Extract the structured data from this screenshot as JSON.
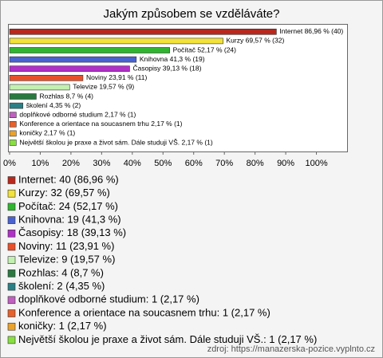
{
  "chart_data": {
    "type": "bar",
    "orientation": "horizontal",
    "title": "Jakým způsobem se vzděláváte?",
    "categories": [
      "Internet",
      "Kurzy",
      "Počítač",
      "Knihovna",
      "Časopisy",
      "Noviny",
      "Televize",
      "Rozhlas",
      "školení",
      "doplňkové odborné studium",
      "Konference a orientace na soucasnem trhu",
      "koničky",
      "Největší školou je praxe a život sám. Dále studuji VŠ."
    ],
    "values": [
      86.96,
      69.57,
      52.17,
      41.3,
      39.13,
      23.91,
      19.57,
      8.7,
      4.35,
      2.17,
      2.17,
      2.17,
      2.17
    ],
    "value_labels": [
      "Internet 86,96 % (40)",
      "Kurzy 69,57 % (32)",
      "Počítač 52,17 % (24)",
      "Knihovna 41,3 % (19)",
      "Časopisy 39,13 % (18)",
      "Noviny 23,91 % (11)",
      "Televize 19,57 % (9)",
      "Rozhlas 8,7 % (4)",
      "školení 4,35 % (2)",
      "doplňkové odborné studium 2,17 % (1)",
      "Konference a orientace na soucasnem trhu 2,17 % (1)",
      "koničky 2,17 % (1)",
      "Největší školou je praxe a život sám. Dále studuji VŠ. 2,17 % (1)"
    ],
    "legend_labels": [
      "Internet: 40 (86,96 %)",
      "Kurzy: 32 (69,57 %)",
      "Počítač: 24 (52,17 %)",
      "Knihovna: 19 (41,3 %)",
      "Časopisy: 18 (39,13 %)",
      "Noviny: 11 (23,91 %)",
      "Televize: 9 (19,57 %)",
      "Rozhlas: 4 (8,7 %)",
      "školení: 2 (4,35 %)",
      "doplňkové odborné studium: 1 (2,17 %)",
      "Konference a orientace na soucasnem trhu: 1 (2,17 %)",
      "koničky: 1 (2,17 %)",
      "Největší školou je praxe a život sám. Dále studuji VŠ.: 1 (2,17 %)"
    ],
    "colors": [
      "#b8281c",
      "#f2e23a",
      "#2fb52f",
      "#4a62d0",
      "#b030c8",
      "#e8502a",
      "#c2f0b0",
      "#2a7a40",
      "#2a7f86",
      "#c060c0",
      "#e8602a",
      "#eaa22a",
      "#88e040"
    ],
    "xlim": [
      0,
      110
    ],
    "xticks": [
      {
        "value": 0,
        "label": "0%"
      },
      {
        "value": 10,
        "label": "10%"
      },
      {
        "value": 20,
        "label": "20%"
      },
      {
        "value": 30,
        "label": "30%"
      },
      {
        "value": 40,
        "label": "40%"
      },
      {
        "value": 50,
        "label": "50%"
      },
      {
        "value": 60,
        "label": "60%"
      },
      {
        "value": 70,
        "label": "70%"
      },
      {
        "value": 80,
        "label": "80%"
      },
      {
        "value": 90,
        "label": "90%"
      },
      {
        "value": 100,
        "label": "100%"
      }
    ],
    "source": "zdroj: https://manazerska-pozice.vyplnto.cz"
  }
}
